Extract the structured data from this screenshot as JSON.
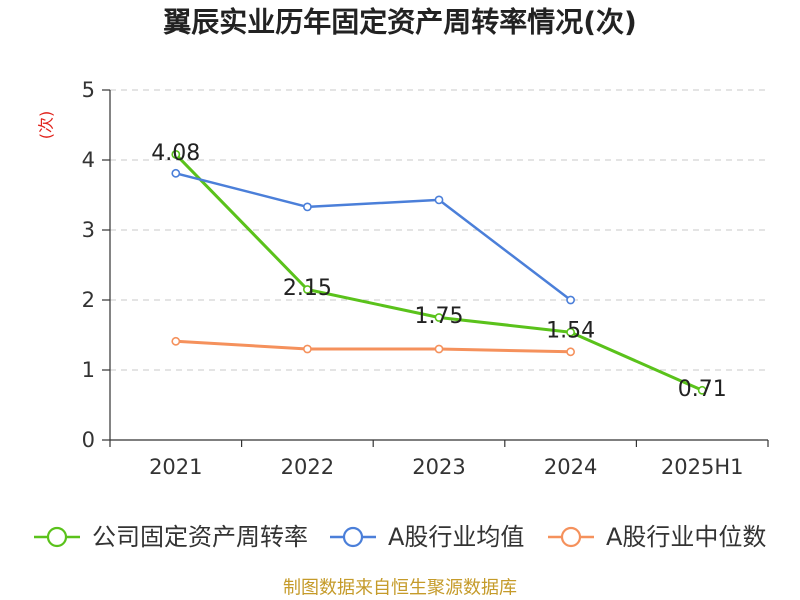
{
  "footer": "制图数据来自恒生聚源数据库",
  "colors": {
    "y_axis_label": "#e0231c",
    "footer": "#c59b2a"
  },
  "chart_data": {
    "type": "line",
    "title": "翼辰实业历年固定资产周转率情况(次)",
    "xlabel": "",
    "ylabel": "(次)",
    "categories": [
      "2021",
      "2022",
      "2023",
      "2024",
      "2025H1"
    ],
    "ylim": [
      0,
      5
    ],
    "yticks": [
      0,
      1,
      2,
      3,
      4,
      5
    ],
    "grid": true,
    "legend_position": "bottom",
    "series": [
      {
        "name": "公司固定资产周转率",
        "color": "#5ac21b",
        "values": [
          4.08,
          2.15,
          1.75,
          1.54,
          0.71
        ],
        "data_labels": true
      },
      {
        "name": "A股行业均值",
        "color": "#4b7fd9",
        "values": [
          3.81,
          3.33,
          3.43,
          2.0,
          null
        ],
        "data_labels": false
      },
      {
        "name": "A股行业中位数",
        "color": "#f5915c",
        "values": [
          1.41,
          1.3,
          1.3,
          1.26,
          null
        ],
        "data_labels": false
      }
    ]
  }
}
